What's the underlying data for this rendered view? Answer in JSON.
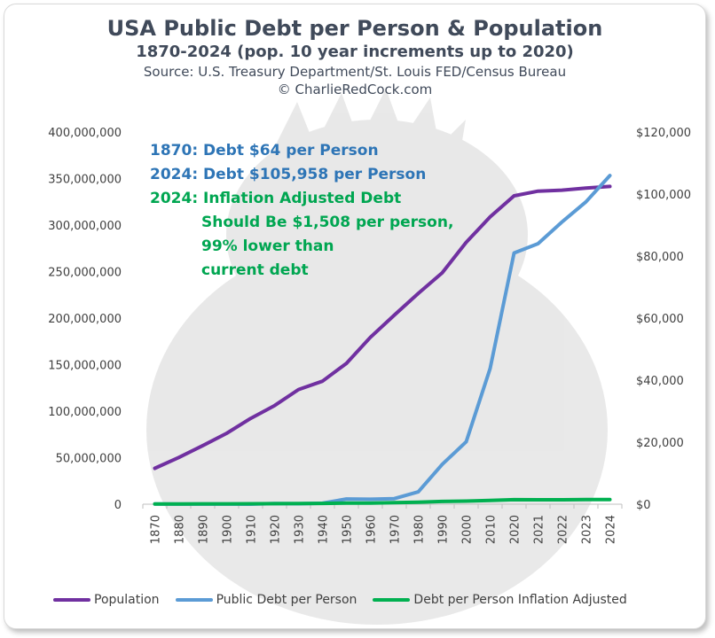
{
  "header": {
    "title": "USA Public Debt per Person & Population",
    "subtitle": "1870-2024 (pop. 10 year increments up to 2020)",
    "source": "Source: U.S. Treasury Department/St. Louis FED/Census Bureau",
    "copyright": "© CharlieRedCock.com"
  },
  "annotations": [
    {
      "text": "1870: Debt $64 per Person",
      "color": "#2e75b6"
    },
    {
      "text": "2024: Debt $105,958 per Person",
      "color": "#2e75b6"
    },
    {
      "text": "2024: Inflation Adjusted Debt",
      "color": "#00a651"
    },
    {
      "text": "Should Be $1,508 per person,",
      "color": "#00a651"
    },
    {
      "text": "99% lower than",
      "color": "#00a651"
    },
    {
      "text": "current debt",
      "color": "#00a651"
    }
  ],
  "chart_data": {
    "type": "line",
    "categories": [
      "1870",
      "1880",
      "1890",
      "1900",
      "1910",
      "1920",
      "1930",
      "1940",
      "1950",
      "1960",
      "1970",
      "1980",
      "1990",
      "2000",
      "2010",
      "2020",
      "2021",
      "2022",
      "2023",
      "2024"
    ],
    "y_left": {
      "min": 0,
      "max": 400000000,
      "ticks": [
        "0",
        "50,000,000",
        "100,000,000",
        "150,000,000",
        "200,000,000",
        "250,000,000",
        "300,000,000",
        "350,000,000",
        "400,000,000"
      ]
    },
    "y_right": {
      "min": 0,
      "max": 120000,
      "ticks": [
        "$0",
        "$20,000",
        "$40,000",
        "$60,000",
        "$80,000",
        "$100,000",
        "$120,000"
      ]
    },
    "series": [
      {
        "name": "Population",
        "axis": "left",
        "color": "#7030a0",
        "values": [
          38558371,
          50189209,
          62979766,
          76212168,
          92228496,
          106021537,
          123202624,
          132164569,
          151325798,
          179323175,
          203211926,
          226545805,
          248709873,
          281421906,
          308745538,
          331449281,
          336500000,
          337500000,
          339800000,
          341500000
        ]
      },
      {
        "name": "Public Debt per Person",
        "axis": "right",
        "color": "#5b9bd5",
        "values": [
          64,
          40,
          19,
          17,
          13,
          228,
          132,
          325,
          1696,
          1603,
          1811,
          3985,
          12823,
          20110,
          43748,
          81000,
          84000,
          91000,
          97500,
          105958
        ]
      },
      {
        "name": "Debt per Person Inflation Adjusted",
        "axis": "right",
        "color": "#00b050",
        "values": [
          64,
          70,
          100,
          110,
          150,
          180,
          200,
          260,
          350,
          380,
          480,
          640,
          900,
          1000,
          1200,
          1450,
          1440,
          1420,
          1500,
          1508
        ]
      }
    ]
  }
}
